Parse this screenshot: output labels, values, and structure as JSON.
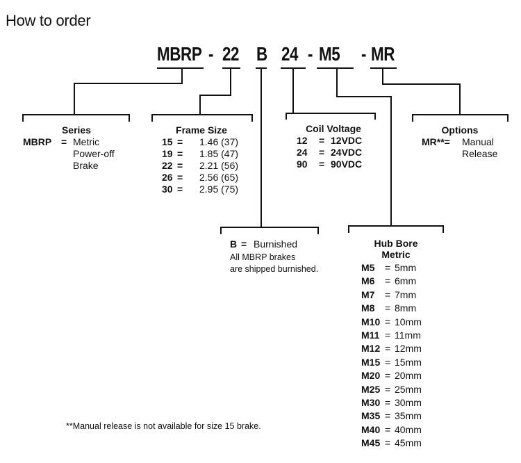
{
  "title": "How to order",
  "part_code": {
    "series": "MBRP",
    "sep1": "-",
    "frame": "22",
    "burnish": "B",
    "voltage": "24",
    "sep2": "-",
    "bore": "M5",
    "sep3": "-",
    "option": "MR"
  },
  "series": {
    "header": "Series",
    "code": "MBRP",
    "eq": "=",
    "lines": [
      "Metric",
      "Power-off",
      "Brake"
    ]
  },
  "frame_size": {
    "header": "Frame Size",
    "items": [
      {
        "code": "15",
        "value": "1.46 (37)"
      },
      {
        "code": "19",
        "value": "1.85 (47)"
      },
      {
        "code": "22",
        "value": "2.21 (56)"
      },
      {
        "code": "26",
        "value": "2.56 (65)"
      },
      {
        "code": "30",
        "value": "2.95 (75)"
      }
    ]
  },
  "coil_voltage": {
    "header": "Coil Voltage",
    "items": [
      {
        "code": "12",
        "value": "12VDC"
      },
      {
        "code": "24",
        "value": "24VDC"
      },
      {
        "code": "90",
        "value": "90VDC"
      }
    ]
  },
  "options": {
    "header": "Options",
    "code": "MR**=",
    "lines": [
      "Manual",
      "Release"
    ]
  },
  "burnished": {
    "code": "B",
    "eq": "=",
    "value": "Burnished",
    "note1": "All MBRP brakes",
    "note2": "are shipped burnished."
  },
  "hub_bore": {
    "header1": "Hub Bore",
    "header2": "Metric",
    "items": [
      {
        "code": "M5",
        "value": "5mm"
      },
      {
        "code": "M6",
        "value": "6mm"
      },
      {
        "code": "M7",
        "value": "7mm"
      },
      {
        "code": "M8",
        "value": "8mm"
      },
      {
        "code": "M10",
        "value": "10mm"
      },
      {
        "code": "M11",
        "value": "11mm"
      },
      {
        "code": "M12",
        "value": "12mm"
      },
      {
        "code": "M15",
        "value": "15mm"
      },
      {
        "code": "M20",
        "value": "20mm"
      },
      {
        "code": "M25",
        "value": "25mm"
      },
      {
        "code": "M30",
        "value": "30mm"
      },
      {
        "code": "M35",
        "value": "35mm"
      },
      {
        "code": "M40",
        "value": "40mm"
      },
      {
        "code": "M45",
        "value": "45mm"
      }
    ]
  },
  "footnote": "**Manual release is not available for size 15 brake."
}
